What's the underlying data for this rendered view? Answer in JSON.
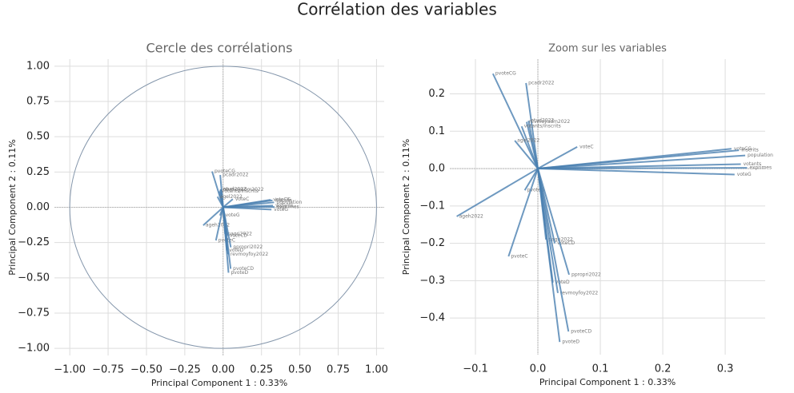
{
  "suptitle": "Corrélation des variables",
  "chart_data": [
    {
      "type": "quiver",
      "title": "Cercle des corrélations",
      "x_label": "Principal Component 1 : 0.33%",
      "y_label": "Principal Component 2 : 0.11%",
      "labels": [
        "pvoteCG",
        "pcadr2022",
        "etud2022",
        "revmoyadm2022",
        "votants/inscrits",
        "agel2022",
        "voteC",
        "voteCG",
        "inscrits",
        "population",
        "votants",
        "exprimes",
        "voteG",
        "pvoteG",
        "ageh2022",
        "pvoteC",
        "pagri2022",
        "voteCD",
        "ppropri2022",
        "voteD",
        "revmoyfoy2022",
        "pvoteCD",
        "pvoteD"
      ],
      "x": [
        -0.072,
        -0.019,
        -0.015,
        -0.018,
        -0.026,
        -0.037,
        0.063,
        0.31,
        0.322,
        0.332,
        0.325,
        0.335,
        0.315,
        -0.021,
        -0.13,
        -0.047,
        0.013,
        0.027,
        0.05,
        0.024,
        0.032,
        0.049,
        0.035
      ],
      "y": [
        0.254,
        0.229,
        0.128,
        0.125,
        0.113,
        0.075,
        0.058,
        0.053,
        0.049,
        0.035,
        0.012,
        0.002,
        -0.016,
        -0.058,
        -0.128,
        -0.235,
        -0.19,
        -0.2,
        -0.284,
        -0.305,
        -0.333,
        -0.436,
        -0.464
      ],
      "color": "#4a7fb0",
      "circle_radius": 1,
      "circle_color": "#8496ab",
      "xlim": [
        -1.1,
        1.05
      ],
      "ylim": [
        -1.05,
        1.05
      ],
      "xticks": [
        {
          "value": -1,
          "label": "−1.00"
        },
        {
          "value": -0.75,
          "label": "−0.75"
        },
        {
          "value": -0.5,
          "label": "−0.50"
        },
        {
          "value": -0.25,
          "label": "−0.25"
        },
        {
          "value": 0,
          "label": "0.00"
        },
        {
          "value": 0.25,
          "label": "0.25"
        },
        {
          "value": 0.5,
          "label": "0.50"
        },
        {
          "value": 0.75,
          "label": "0.75"
        },
        {
          "value": 1,
          "label": "1.00"
        }
      ],
      "yticks": [
        {
          "value": -1,
          "label": "−1.00"
        },
        {
          "value": -0.75,
          "label": "−0.75"
        },
        {
          "value": -0.5,
          "label": "−0.50"
        },
        {
          "value": -0.25,
          "label": "−0.25"
        },
        {
          "value": 0,
          "label": "0.00"
        },
        {
          "value": 0.25,
          "label": "0.25"
        },
        {
          "value": 0.5,
          "label": "0.50"
        },
        {
          "value": 0.75,
          "label": "0.75"
        },
        {
          "value": 1,
          "label": "1.00"
        }
      ],
      "grid": true
    },
    {
      "type": "quiver",
      "title": "Zoom sur les variables",
      "x_label": "Principal Component 1 : 0.33%",
      "y_label": "Principal Component 2 : 0.11%",
      "labels": [
        "pvoteCG",
        "pcadr2022",
        "etud2022",
        "revmoyadm2022",
        "votants/inscrits",
        "agel2022",
        "voteC",
        "voteCG",
        "inscrits",
        "population",
        "votants",
        "exprimes",
        "voteG",
        "pvoteG",
        "ageh2022",
        "pvoteC",
        "pagri2022",
        "voteCD",
        "ppropri2022",
        "voteD",
        "revmoyfoy2022",
        "pvoteCD",
        "pvoteD"
      ],
      "x": [
        -0.072,
        -0.019,
        -0.015,
        -0.018,
        -0.026,
        -0.037,
        0.063,
        0.31,
        0.322,
        0.332,
        0.325,
        0.335,
        0.315,
        -0.021,
        -0.13,
        -0.047,
        0.013,
        0.027,
        0.05,
        0.024,
        0.032,
        0.049,
        0.035
      ],
      "y": [
        0.254,
        0.229,
        0.128,
        0.125,
        0.113,
        0.075,
        0.058,
        0.053,
        0.049,
        0.035,
        0.012,
        0.002,
        -0.016,
        -0.058,
        -0.128,
        -0.235,
        -0.19,
        -0.2,
        -0.284,
        -0.305,
        -0.333,
        -0.436,
        -0.464
      ],
      "color": "#4a7fb0",
      "xlim": [
        -0.141,
        0.364
      ],
      "ylim": [
        -0.498,
        0.293
      ],
      "xticks": [
        {
          "value": -0.1,
          "label": "−0.1"
        },
        {
          "value": 0,
          "label": "0.0"
        },
        0.1,
        0.2,
        0.3
      ],
      "yticks": [
        {
          "value": -0.4,
          "label": "−0.4"
        },
        {
          "value": -0.3,
          "label": "−0.3"
        },
        {
          "value": -0.2,
          "label": "−0.2"
        },
        {
          "value": -0.1,
          "label": "−0.1"
        },
        {
          "value": 0,
          "label": "0.0"
        },
        0.1,
        0.2
      ],
      "grid": true
    }
  ]
}
